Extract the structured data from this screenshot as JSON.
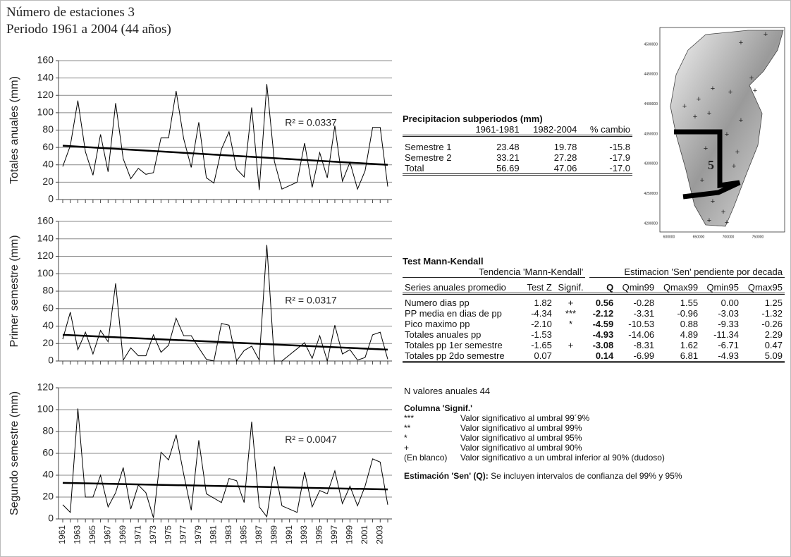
{
  "header": {
    "line1": "Número de estaciones 3",
    "line2": "Periodo 1961 a 2004 (44 años)"
  },
  "chart_data": [
    {
      "type": "line",
      "ylabel": "Totales anuales (mm)",
      "color": "#000000",
      "grid": true,
      "ylim": [
        0,
        160
      ],
      "yticks": [
        0,
        20,
        40,
        60,
        80,
        100,
        120,
        140,
        160
      ],
      "values": [
        38,
        62,
        114,
        55,
        28,
        75,
        32,
        111,
        47,
        24,
        36,
        29,
        31,
        71,
        71,
        125,
        70,
        37,
        89,
        25,
        19,
        58,
        78,
        35,
        26,
        106,
        11,
        133,
        44,
        12,
        16,
        20,
        65,
        14,
        54,
        25,
        85,
        21,
        43,
        12,
        33,
        83,
        83,
        15
      ],
      "trendline": {
        "start": 62,
        "end": 40
      },
      "annotation": "R² = 0.0337"
    },
    {
      "type": "line",
      "ylabel": "Primer semestre (mm)",
      "color": "#000000",
      "grid": true,
      "ylim": [
        0,
        160
      ],
      "yticks": [
        0,
        20,
        40,
        60,
        80,
        100,
        120,
        140,
        160
      ],
      "values": [
        25,
        56,
        13,
        33,
        8,
        35,
        22,
        89,
        1,
        15,
        6,
        6,
        30,
        10,
        18,
        49,
        29,
        29,
        15,
        2,
        0,
        43,
        41,
        0,
        12,
        17,
        1,
        133,
        0,
        0,
        7,
        14,
        21,
        3,
        29,
        0,
        41,
        8,
        13,
        1,
        4,
        30,
        33,
        2
      ],
      "trendline": {
        "start": 30,
        "end": 13
      },
      "annotation": "R² = 0.0317"
    },
    {
      "type": "line",
      "ylabel": "Segundo semestre (mm)",
      "color": "#000000",
      "grid": true,
      "ylim": [
        0,
        120
      ],
      "yticks": [
        0,
        20,
        40,
        60,
        80,
        100,
        120
      ],
      "categories": [
        "1961",
        null,
        "1963",
        null,
        "1965",
        null,
        "1967",
        null,
        "1969",
        null,
        "1971",
        null,
        "1973",
        null,
        "1975",
        null,
        "1977",
        null,
        "1979",
        null,
        "1981",
        null,
        "1983",
        null,
        "1985",
        null,
        "1987",
        null,
        "1989",
        null,
        "1991",
        null,
        "1993",
        null,
        "1995",
        null,
        "1997",
        null,
        "1999",
        null,
        "2001",
        null,
        "2003",
        null
      ],
      "values": [
        13,
        6,
        101,
        20,
        20,
        40,
        11,
        24,
        47,
        9,
        31,
        24,
        1,
        61,
        54,
        77,
        41,
        8,
        72,
        23,
        19,
        15,
        37,
        35,
        15,
        89,
        11,
        2,
        48,
        12,
        9,
        6,
        43,
        11,
        26,
        23,
        44,
        14,
        30,
        12,
        30,
        55,
        52,
        13
      ],
      "trendline": {
        "start": 33,
        "end": 27
      },
      "annotation": "R² = 0.0047"
    }
  ],
  "precip_table": {
    "title": "Precipitacion subperiodos (mm)",
    "columns": [
      "1961-1981",
      "1982-2004",
      "% cambio"
    ],
    "rows": [
      [
        "Semestre 1",
        "23.48",
        "19.78",
        "-15.8"
      ],
      [
        "Semestre 2",
        "33.21",
        "27.28",
        "-17.9"
      ],
      [
        "Total",
        "56.69",
        "47.06",
        "-17.0"
      ]
    ]
  },
  "mann_kendall": {
    "title": "Test Mann-Kendall",
    "groups": [
      "Tendencia 'Mann-Kendall'",
      "Estimacion 'Sen' pendiente por decada"
    ],
    "columns": [
      "Series anuales promedio",
      "Test Z",
      "Signif.",
      "Q",
      "Qmin99",
      "Qmax99",
      "Qmin95",
      "Qmax95"
    ],
    "rows": [
      [
        "Numero dias pp",
        "1.82",
        "+",
        "0.56",
        "-0.28",
        "1.55",
        "0.00",
        "1.25"
      ],
      [
        "PP media en dias de pp",
        "-4.34",
        "***",
        "-2.12",
        "-3.31",
        "-0.96",
        "-3.03",
        "-1.32"
      ],
      [
        "Pico maximo pp",
        "-2.10",
        "*",
        "-4.59",
        "-10.53",
        "0.88",
        "-9.33",
        "-0.26"
      ],
      [
        "Totales anuales pp",
        "-1.53",
        null,
        "-4.93",
        "-14.06",
        "4.89",
        "-11.34",
        "2.29"
      ],
      [
        "Totales pp 1er semestre",
        "-1.65",
        "+",
        "-3.08",
        "-8.31",
        "1.62",
        "-6.71",
        "0.47"
      ],
      [
        "Totales pp 2do semestre",
        "0.07",
        null,
        "0.14",
        "-6.99",
        "6.81",
        "-4.93",
        "5.09"
      ]
    ]
  },
  "n_values": {
    "label": "N valores anuales",
    "value": 44
  },
  "signif_legend": {
    "title": "Columna 'Signif.'",
    "rows": [
      [
        "***",
        "Valor significativo al umbral 99´9%"
      ],
      [
        "**",
        "Valor significativo al umbral 99%"
      ],
      [
        "*",
        "Valor significativo al umbral 95%"
      ],
      [
        "+",
        "Valor significativo al umbral 90%"
      ],
      [
        "(En blanco)",
        "Valor significativo a un umbral inferior al 90% (dudoso)"
      ]
    ]
  },
  "sen_note": {
    "label": "Estimación 'Sen' (Q):",
    "text": "Se incluyen intervalos de confianza del 99% y 95%"
  },
  "map": {
    "yticks": [
      "4500000",
      "4450000",
      "4400000",
      "4350000",
      "4300000",
      "4250000",
      "4200000"
    ],
    "xticks": [
      "600000",
      "650000",
      "700000",
      "750000"
    ],
    "zone": "5"
  }
}
